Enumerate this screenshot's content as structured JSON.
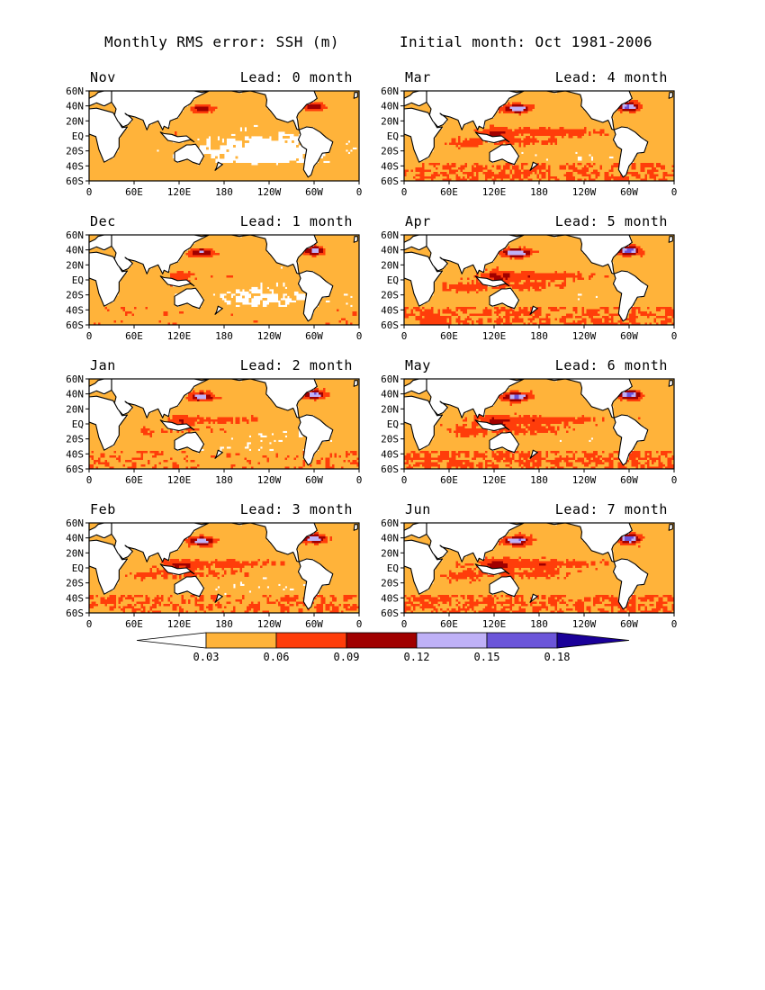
{
  "header": {
    "title_left": "Monthly RMS error: SSH (m)",
    "title_right": "Initial month: Oct 1981-2006"
  },
  "colors": {
    "white": "#ffffff",
    "c1": "#ffb33a",
    "c2": "#ff3d0a",
    "c3": "#a00000",
    "c4": "#bfb1f7",
    "c5": "#6b55d9",
    "c6": "#1a0099"
  },
  "chart_data": {
    "type": "heatmap",
    "title": "Monthly RMS error: SSH (m)",
    "subtitle": "Initial month: Oct 1981-2006",
    "x_ticks": [
      "0",
      "60E",
      "120E",
      "180",
      "120W",
      "60W",
      "0"
    ],
    "y_ticks": [
      "60N",
      "40N",
      "20N",
      "EQ",
      "20S",
      "40S",
      "60S"
    ],
    "xlim": [
      0,
      360
    ],
    "ylim": [
      -60,
      60
    ],
    "colorbar": {
      "levels": [
        "0.03",
        "0.06",
        "0.09",
        "0.12",
        "0.15",
        "0.18"
      ],
      "level_values": [
        0.03,
        0.06,
        0.09,
        0.12,
        0.15,
        0.18
      ]
    },
    "panels": [
      {
        "month": "Nov",
        "lead": "Lead: 0 month",
        "lead_months": 0,
        "intensity": 0.0
      },
      {
        "month": "Mar",
        "lead": "Lead: 4 month",
        "lead_months": 4,
        "intensity": 0.78
      },
      {
        "month": "Dec",
        "lead": "Lead: 1 month",
        "lead_months": 1,
        "intensity": 0.35
      },
      {
        "month": "Apr",
        "lead": "Lead: 5 month",
        "lead_months": 5,
        "intensity": 0.82
      },
      {
        "month": "Jan",
        "lead": "Lead: 2 month",
        "lead_months": 2,
        "intensity": 0.55
      },
      {
        "month": "May",
        "lead": "Lead: 6 month",
        "lead_months": 6,
        "intensity": 0.85
      },
      {
        "month": "Feb",
        "lead": "Lead: 3 month",
        "lead_months": 3,
        "intensity": 0.7
      },
      {
        "month": "Jun",
        "lead": "Lead: 7 month",
        "lead_months": 7,
        "intensity": 0.88
      }
    ]
  }
}
